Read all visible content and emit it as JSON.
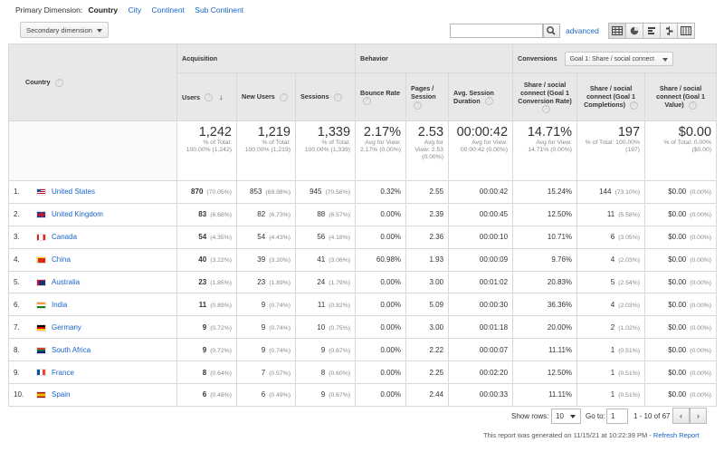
{
  "primary_dimension": {
    "label": "Primary Dimension:",
    "current": "Country",
    "options": [
      "City",
      "Continent",
      "Sub Continent"
    ]
  },
  "toolbar": {
    "secondary_dimension": "Secondary dimension",
    "search_value": "",
    "advanced": "advanced"
  },
  "columns": {
    "dimension": "Country",
    "groups": {
      "acquisition": "Acquisition",
      "behavior": "Behavior",
      "conversions": "Conversions"
    },
    "goal_select": "Goal 1: Share / social connect",
    "users": "Users",
    "new_users": "New Users",
    "sessions": "Sessions",
    "bounce_rate": "Bounce Rate",
    "pages_session": "Pages / Session",
    "avg_duration": "Avg. Session Duration",
    "conv_rate": "Share / social connect (Goal 1 Conversion Rate)",
    "completions": "Share / social connect (Goal 1 Completions)",
    "value": "Share / social connect (Goal 1 Value)"
  },
  "totals": {
    "users": {
      "big": "1,242",
      "sub": "% of Total: 100.00% (1,242)"
    },
    "new_users": {
      "big": "1,219",
      "sub": "% of Total: 100.00% (1,219)"
    },
    "sessions": {
      "big": "1,339",
      "sub": "% of Total: 100.00% (1,339)"
    },
    "bounce_rate": {
      "big": "2.17%",
      "sub": "Avg for View: 2.17% (0.00%)"
    },
    "pages_session": {
      "big": "2.53",
      "sub": "Avg for View: 2.53 (0.00%)"
    },
    "avg_duration": {
      "big": "00:00:42",
      "sub": "Avg for View: 00:00:42 (0.00%)"
    },
    "conv_rate": {
      "big": "14.71%",
      "sub": "Avg for View: 14.71% (0.00%)"
    },
    "completions": {
      "big": "197",
      "sub": "% of Total: 100.00% (197)"
    },
    "value": {
      "big": "$0.00",
      "sub": "% of Total: 0.00% ($0.00)"
    }
  },
  "rows": [
    {
      "idx": "1.",
      "country": "United States",
      "flag": "us-flag",
      "users": "870",
      "users_pct": "(70.05%)",
      "new_users": "853",
      "new_pct": "(69.98%)",
      "sessions": "945",
      "sess_pct": "(70.58%)",
      "bounce": "0.32%",
      "pages": "2.55",
      "duration": "00:00:42",
      "conv": "15.24%",
      "comp": "144",
      "comp_pct": "(73.10%)",
      "value": "$0.00",
      "value_pct": "(0.00%)"
    },
    {
      "idx": "2.",
      "country": "United Kingdom",
      "flag": "uk-flag",
      "users": "83",
      "users_pct": "(6.68%)",
      "new_users": "82",
      "new_pct": "(6.73%)",
      "sessions": "88",
      "sess_pct": "(6.57%)",
      "bounce": "0.00%",
      "pages": "2.39",
      "duration": "00:00:45",
      "conv": "12.50%",
      "comp": "11",
      "comp_pct": "(5.58%)",
      "value": "$0.00",
      "value_pct": "(0.00%)"
    },
    {
      "idx": "3.",
      "country": "Canada",
      "flag": "canada-flag",
      "users": "54",
      "users_pct": "(4.35%)",
      "new_users": "54",
      "new_pct": "(4.43%)",
      "sessions": "56",
      "sess_pct": "(4.18%)",
      "bounce": "0.00%",
      "pages": "2.36",
      "duration": "00:00:10",
      "conv": "10.71%",
      "comp": "6",
      "comp_pct": "(3.05%)",
      "value": "$0.00",
      "value_pct": "(0.00%)"
    },
    {
      "idx": "4.",
      "country": "China",
      "flag": "china-flag",
      "users": "40",
      "users_pct": "(3.22%)",
      "new_users": "39",
      "new_pct": "(3.20%)",
      "sessions": "41",
      "sess_pct": "(3.06%)",
      "bounce": "60.98%",
      "pages": "1.93",
      "duration": "00:00:09",
      "conv": "9.76%",
      "comp": "4",
      "comp_pct": "(2.03%)",
      "value": "$0.00",
      "value_pct": "(0.00%)"
    },
    {
      "idx": "5.",
      "country": "Australia",
      "flag": "australia-flag",
      "users": "23",
      "users_pct": "(1.85%)",
      "new_users": "23",
      "new_pct": "(1.89%)",
      "sessions": "24",
      "sess_pct": "(1.79%)",
      "bounce": "0.00%",
      "pages": "3.00",
      "duration": "00:01:02",
      "conv": "20.83%",
      "comp": "5",
      "comp_pct": "(2.54%)",
      "value": "$0.00",
      "value_pct": "(0.00%)"
    },
    {
      "idx": "6.",
      "country": "India",
      "flag": "india-flag",
      "users": "11",
      "users_pct": "(0.89%)",
      "new_users": "9",
      "new_pct": "(0.74%)",
      "sessions": "11",
      "sess_pct": "(0.82%)",
      "bounce": "0.00%",
      "pages": "5.09",
      "duration": "00:00:30",
      "conv": "36.36%",
      "comp": "4",
      "comp_pct": "(2.03%)",
      "value": "$0.00",
      "value_pct": "(0.00%)"
    },
    {
      "idx": "7.",
      "country": "Germany",
      "flag": "germany-flag",
      "users": "9",
      "users_pct": "(0.72%)",
      "new_users": "9",
      "new_pct": "(0.74%)",
      "sessions": "10",
      "sess_pct": "(0.75%)",
      "bounce": "0.00%",
      "pages": "3.00",
      "duration": "00:01:18",
      "conv": "20.00%",
      "comp": "2",
      "comp_pct": "(1.02%)",
      "value": "$0.00",
      "value_pct": "(0.00%)"
    },
    {
      "idx": "8.",
      "country": "South Africa",
      "flag": "south-africa-flag",
      "users": "9",
      "users_pct": "(0.72%)",
      "new_users": "9",
      "new_pct": "(0.74%)",
      "sessions": "9",
      "sess_pct": "(0.67%)",
      "bounce": "0.00%",
      "pages": "2.22",
      "duration": "00:00:07",
      "conv": "11.11%",
      "comp": "1",
      "comp_pct": "(0.51%)",
      "value": "$0.00",
      "value_pct": "(0.00%)"
    },
    {
      "idx": "9.",
      "country": "France",
      "flag": "france-flag",
      "users": "8",
      "users_pct": "(0.64%)",
      "new_users": "7",
      "new_pct": "(0.57%)",
      "sessions": "8",
      "sess_pct": "(0.60%)",
      "bounce": "0.00%",
      "pages": "2.25",
      "duration": "00:02:20",
      "conv": "12.50%",
      "comp": "1",
      "comp_pct": "(0.51%)",
      "value": "$0.00",
      "value_pct": "(0.00%)"
    },
    {
      "idx": "10.",
      "country": "Spain",
      "flag": "spain-flag",
      "users": "6",
      "users_pct": "(0.48%)",
      "new_users": "6",
      "new_pct": "(0.49%)",
      "sessions": "9",
      "sess_pct": "(0.67%)",
      "bounce": "0.00%",
      "pages": "2.44",
      "duration": "00:00:33",
      "conv": "11.11%",
      "comp": "1",
      "comp_pct": "(0.51%)",
      "value": "$0.00",
      "value_pct": "(0.00%)"
    }
  ],
  "pager": {
    "show_rows": "Show rows:",
    "rows_value": "10",
    "go_to": "Go to:",
    "go_to_value": "1",
    "range": "1 - 10 of 67",
    "prev": "‹",
    "next": "›"
  },
  "footer": {
    "text": "This report was generated on 11/15/21 at 10:22:39 PM - ",
    "refresh": "Refresh Report"
  },
  "colors": {
    "link": "#1a64c8",
    "header_bg": "#e8e8e8",
    "border": "#d9d9d9"
  }
}
